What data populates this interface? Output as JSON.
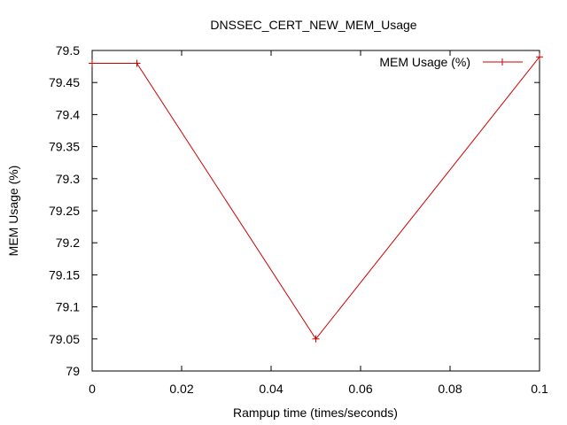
{
  "chart_data": {
    "type": "line",
    "title": "DNSSEC_CERT_NEW_MEM_Usage",
    "xlabel": "Rampup time (times/seconds)",
    "ylabel": "MEM Usage (%)",
    "xlim": [
      0,
      0.1
    ],
    "ylim": [
      79,
      79.5
    ],
    "x_ticks": [
      "0",
      "0.02",
      "0.04",
      "0.06",
      "0.08",
      "0.1"
    ],
    "y_ticks": [
      "79",
      "79.05",
      "79.1",
      "79.15",
      "79.2",
      "79.25",
      "79.3",
      "79.35",
      "79.4",
      "79.45",
      "79.5"
    ],
    "grid": false,
    "legend_position": "top-right",
    "series": [
      {
        "name": "MEM Usage (%)",
        "color": "#cc0000",
        "marker": "plus",
        "x": [
          0,
          0.01,
          0.05,
          0.1
        ],
        "values": [
          79.48,
          79.48,
          79.05,
          79.49
        ]
      }
    ]
  }
}
